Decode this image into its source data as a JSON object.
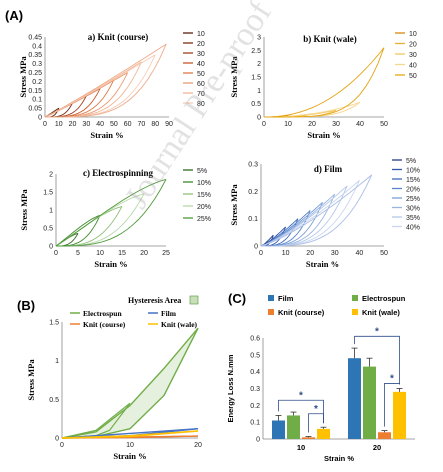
{
  "panel_labels": {
    "A": "(A)",
    "B": "(B)",
    "C": "(C)"
  },
  "watermark": "Journal Pre-proof",
  "chart_data": [
    {
      "id": "a",
      "type": "line",
      "title": "a) Knit (course)",
      "xlabel": "Strain %",
      "ylabel": "Stress MPa",
      "xlim": [
        0,
        90
      ],
      "ylim": [
        0,
        0.45
      ],
      "xticks": [
        0,
        10,
        20,
        30,
        40,
        50,
        60,
        70,
        80,
        90
      ],
      "yticks": [
        0,
        0.05,
        0.1,
        0.15,
        0.2,
        0.25,
        0.3,
        0.35,
        0.4,
        0.45
      ],
      "ytick_labels": [
        "0",
        "0.05",
        "0.1",
        "0.15",
        "0.2",
        "0.25",
        "0.3",
        "0.35",
        "0.4",
        "0.45"
      ],
      "grid": false,
      "legend_position": "right",
      "series": [
        {
          "name": "10",
          "color": "#5a1f0a",
          "max_strain": 10,
          "peak": 0.05
        },
        {
          "name": "20",
          "color": "#7a2f12",
          "max_strain": 20,
          "peak": 0.08
        },
        {
          "name": "30",
          "color": "#a0401c",
          "max_strain": 30,
          "peak": 0.12
        },
        {
          "name": "40",
          "color": "#c75a2a",
          "max_strain": 40,
          "peak": 0.16
        },
        {
          "name": "50",
          "color": "#e07a48",
          "max_strain": 50,
          "peak": 0.21
        },
        {
          "name": "60",
          "color": "#eb9a70",
          "max_strain": 60,
          "peak": 0.25
        },
        {
          "name": "70",
          "color": "#f2b596",
          "max_strain": 70,
          "peak": 0.31
        },
        {
          "name": "80",
          "color": "#f7cbb4",
          "max_strain": 80,
          "peak": 0.35
        },
        {
          "name": "",
          "color": "#eeaa88",
          "max_strain": 88,
          "peak": 0.41
        }
      ]
    },
    {
      "id": "b",
      "type": "line",
      "title": "b) Knit (wale)",
      "xlabel": "Strain %",
      "ylabel": "Stress MPa",
      "xlim": [
        0,
        50
      ],
      "ylim": [
        0,
        3
      ],
      "xticks": [
        0,
        10,
        20,
        30,
        40,
        50
      ],
      "yticks": [
        0,
        0.5,
        1,
        1.5,
        2,
        2.5,
        3
      ],
      "ytick_labels": [
        "0",
        "0.5",
        "1",
        "1.5",
        "2",
        "2.5",
        "3"
      ],
      "grid": false,
      "legend_position": "right",
      "series": [
        {
          "name": "10",
          "color": "#d48a0a",
          "max_strain": 10,
          "peak": 0.06
        },
        {
          "name": "20",
          "color": "#e9b030",
          "max_strain": 20,
          "peak": 0.12
        },
        {
          "name": "30",
          "color": "#f2c760",
          "max_strain": 30,
          "peak": 0.25
        },
        {
          "name": "40",
          "color": "#f6d78c",
          "max_strain": 40,
          "peak": 0.55
        },
        {
          "name": "50",
          "color": "#e4a412",
          "max_strain": 50,
          "peak": 2.6
        }
      ]
    },
    {
      "id": "c",
      "type": "line",
      "title": "c) Electrospinning",
      "xlabel": "Strain %",
      "ylabel": "Stress MPa",
      "xlim": [
        0,
        25
      ],
      "ylim": [
        0,
        2
      ],
      "xticks": [
        0,
        5,
        10,
        15,
        20,
        25
      ],
      "yticks": [
        0,
        0.5,
        1,
        1.5,
        2
      ],
      "ytick_labels": [
        "0",
        "0.5",
        "1",
        "1.5",
        "2"
      ],
      "grid": false,
      "legend_position": "right",
      "series": [
        {
          "name": "5%",
          "color": "#2e6b1e",
          "max_strain": 5,
          "peak": 0.35
        },
        {
          "name": "10%",
          "color": "#3f8a2c",
          "max_strain": 10,
          "peak": 0.85
        },
        {
          "name": "15%",
          "color": "#8ec07a",
          "max_strain": 15,
          "peak": 1.1
        },
        {
          "name": "20%",
          "color": "#b6d8a8",
          "max_strain": 20,
          "peak": 1.45
        },
        {
          "name": "25%",
          "color": "#4e9a38",
          "max_strain": 25,
          "peak": 1.85
        }
      ]
    },
    {
      "id": "d",
      "type": "line",
      "title": "d) Film",
      "xlabel": "Strain %",
      "ylabel": "Stress MPa",
      "xlim": [
        0,
        50
      ],
      "ylim": [
        0,
        0.3
      ],
      "xticks": [
        0,
        10,
        20,
        30,
        40,
        50
      ],
      "yticks": [
        0,
        0.1,
        0.2,
        0.3
      ],
      "ytick_labels": [
        "0",
        "0.1",
        "0.2",
        "0.3"
      ],
      "grid": false,
      "legend_position": "right",
      "series": [
        {
          "name": "5%",
          "color": "#1f3f8f",
          "max_strain": 5,
          "peak": 0.04
        },
        {
          "name": "10%",
          "color": "#2d56a8",
          "max_strain": 10,
          "peak": 0.07
        },
        {
          "name": "15%",
          "color": "#3e6bbd",
          "max_strain": 15,
          "peak": 0.1
        },
        {
          "name": "20%",
          "color": "#5a84cc",
          "max_strain": 20,
          "peak": 0.13
        },
        {
          "name": "25%",
          "color": "#7a9ed8",
          "max_strain": 25,
          "peak": 0.16
        },
        {
          "name": "30%",
          "color": "#98b4e2",
          "max_strain": 30,
          "peak": 0.19
        },
        {
          "name": "35%",
          "color": "#b4c8ea",
          "max_strain": 35,
          "peak": 0.22
        },
        {
          "name": "40%",
          "color": "#c8d6ef",
          "max_strain": 40,
          "peak": 0.24
        },
        {
          "name": "",
          "color": "#aabde6",
          "max_strain": 45,
          "peak": 0.26
        }
      ]
    },
    {
      "id": "B",
      "type": "line",
      "xlabel": "Strain %",
      "ylabel": "Stress MPa",
      "xlim": [
        0,
        20
      ],
      "ylim": [
        0,
        1.5
      ],
      "xticks": [
        0,
        10,
        20
      ],
      "yticks": [
        0,
        0.5,
        1,
        1.5
      ],
      "ytick_labels": [
        "0",
        "0.5",
        "1",
        "1.5"
      ],
      "grid": false,
      "legend_position": "top",
      "hysteresis_label": "Hysteresis Area",
      "series": [
        {
          "name": "Electrospun",
          "color": "#70ad47",
          "points_load": [
            [
              0,
              0
            ],
            [
              5,
              0.08
            ],
            [
              10,
              0.42
            ],
            [
              15,
              0.9
            ],
            [
              20,
              1.42
            ]
          ],
          "points_unload": [
            [
              20,
              1.42
            ],
            [
              15,
              0.55
            ],
            [
              10,
              0.12
            ],
            [
              5,
              0.02
            ],
            [
              0,
              0
            ]
          ],
          "cycle10_load": [
            [
              0,
              0
            ],
            [
              5,
              0.1
            ],
            [
              10,
              0.45
            ]
          ],
          "cycle10_unload": [
            [
              10,
              0.45
            ],
            [
              7,
              0.1
            ],
            [
              5,
              0.03
            ],
            [
              0,
              0
            ]
          ]
        },
        {
          "name": "Film",
          "color": "#4472c4",
          "points_load": [
            [
              0,
              0
            ],
            [
              10,
              0.06
            ],
            [
              20,
              0.12
            ]
          ],
          "points_unload": [
            [
              20,
              0.12
            ],
            [
              10,
              0.03
            ],
            [
              0,
              0
            ]
          ]
        },
        {
          "name": "Knit (course)",
          "color": "#ed7d31",
          "points_load": [
            [
              0,
              0
            ],
            [
              10,
              0.012
            ],
            [
              20,
              0.025
            ]
          ],
          "points_unload": [
            [
              20,
              0.025
            ],
            [
              10,
              0.006
            ],
            [
              0,
              0
            ]
          ]
        },
        {
          "name": "Knit (wale)",
          "color": "#ffc000",
          "points_load": [
            [
              0,
              0
            ],
            [
              10,
              0.03
            ],
            [
              20,
              0.09
            ]
          ],
          "points_unload": [
            [
              20,
              0.09
            ],
            [
              10,
              0.02
            ],
            [
              0,
              0
            ]
          ]
        }
      ]
    },
    {
      "id": "C",
      "type": "bar",
      "xlabel": "Strain %",
      "ylabel": "Energy Loss N.mm",
      "ylim": [
        0,
        0.6
      ],
      "yticks": [
        0,
        0.1,
        0.2,
        0.3,
        0.4,
        0.5,
        0.6
      ],
      "ytick_labels": [
        "0",
        "0.1",
        "0.2",
        "0.3",
        "0.4",
        "0.5",
        "0.6"
      ],
      "categories": [
        "10",
        "20"
      ],
      "grid": false,
      "legend_position": "top",
      "series": [
        {
          "name": "Film",
          "color": "#2e75b6",
          "values": [
            0.11,
            0.48
          ],
          "errors": [
            0.03,
            0.06
          ]
        },
        {
          "name": "Electrospun",
          "color": "#70ad47",
          "values": [
            0.14,
            0.43
          ],
          "errors": [
            0.02,
            0.05
          ]
        },
        {
          "name": "Knit (course)",
          "color": "#ed7d31",
          "values": [
            0.01,
            0.04
          ],
          "errors": [
            0.005,
            0.01
          ]
        },
        {
          "name": "Knit (wale)",
          "color": "#ffc000",
          "values": [
            0.06,
            0.28
          ],
          "errors": [
            0.01,
            0.02
          ]
        }
      ],
      "significance": [
        "*",
        "*",
        "*",
        "*"
      ]
    }
  ]
}
